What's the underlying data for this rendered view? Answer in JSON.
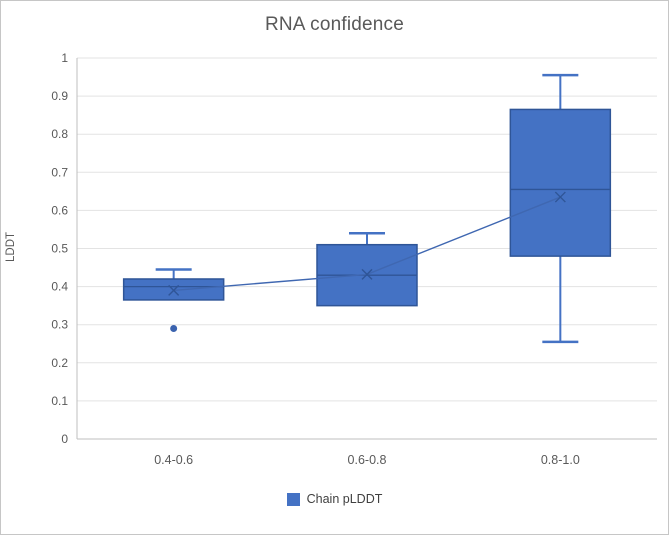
{
  "chart_data": {
    "type": "box",
    "title": "RNA confidence",
    "ylabel": "LDDT",
    "xlabel": "",
    "categories": [
      "0.4-0.6",
      "0.6-0.8",
      "0.8-1.0"
    ],
    "ylim": [
      0,
      1
    ],
    "ytick_step": 0.1,
    "ytick_labels": [
      "0",
      "0.1",
      "0.2",
      "0.3",
      "0.4",
      "0.5",
      "0.6",
      "0.7",
      "0.8",
      "0.9",
      "1"
    ],
    "grid": true,
    "legend_position": "bottom",
    "series": [
      {
        "name": "Chain pLDDT",
        "mean_line": true,
        "boxes": [
          {
            "category": "0.4-0.6",
            "whisker_low": null,
            "q1": 0.365,
            "median": 0.4,
            "q3": 0.42,
            "whisker_high": 0.445,
            "mean": 0.39,
            "outliers": [
              0.29
            ]
          },
          {
            "category": "0.6-0.8",
            "whisker_low": null,
            "q1": 0.35,
            "median": 0.43,
            "q3": 0.51,
            "whisker_high": 0.54,
            "mean": 0.432,
            "outliers": []
          },
          {
            "category": "0.8-1.0",
            "whisker_low": 0.255,
            "q1": 0.48,
            "median": 0.655,
            "q3": 0.865,
            "whisker_high": 0.955,
            "mean": 0.635,
            "outliers": []
          }
        ]
      }
    ],
    "colors": {
      "box_fill": "#4472c4",
      "box_border": "#2f5597",
      "median_line": "#2f5597",
      "whisker": "#4472c4",
      "mean_marker": "#2f5597",
      "mean_line": "#3f67b1",
      "outlier": "#3a62ae",
      "gridline": "#e3e3e3",
      "axis_line": "#bfbfbf",
      "tick_label": "#595959",
      "title_color": "#595959"
    }
  }
}
